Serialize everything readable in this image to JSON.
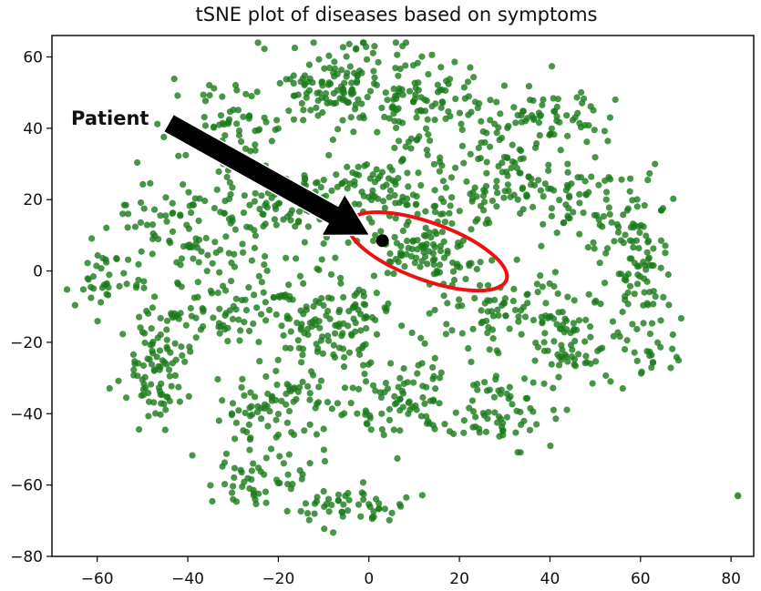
{
  "chart_data": {
    "type": "scatter",
    "title": "tSNE plot of diseases based on symptoms",
    "xlabel": "",
    "ylabel": "",
    "xlim": [
      -70,
      85
    ],
    "ylim": [
      -80,
      66
    ],
    "x_ticks": [
      -60,
      -40,
      -20,
      0,
      20,
      40,
      60,
      80
    ],
    "y_ticks": [
      -80,
      -60,
      -40,
      -20,
      0,
      20,
      40,
      60
    ],
    "grid": false,
    "point_color": "#1a7a1a",
    "clusters": [
      {
        "cx": -8,
        "cy": 52,
        "sx": 8,
        "sy": 6,
        "n": 120
      },
      {
        "cx": 12,
        "cy": 48,
        "sx": 7,
        "sy": 7,
        "n": 100
      },
      {
        "cx": 38,
        "cy": 42,
        "sx": 9,
        "sy": 5,
        "n": 90
      },
      {
        "cx": -30,
        "cy": 38,
        "sx": 7,
        "sy": 7,
        "n": 80
      },
      {
        "cx": -42,
        "cy": 12,
        "sx": 7,
        "sy": 8,
        "n": 70
      },
      {
        "cx": -20,
        "cy": 18,
        "sx": 8,
        "sy": 6,
        "n": 90
      },
      {
        "cx": 5,
        "cy": 22,
        "sx": 9,
        "sy": 6,
        "n": 110
      },
      {
        "cx": 28,
        "cy": 24,
        "sx": 8,
        "sy": 5,
        "n": 80
      },
      {
        "cx": 48,
        "cy": 18,
        "sx": 6,
        "sy": 7,
        "n": 60
      },
      {
        "cx": 60,
        "cy": 4,
        "sx": 4,
        "sy": 9,
        "n": 80
      },
      {
        "cx": 12,
        "cy": 5,
        "sx": 6,
        "sy": 4,
        "n": 80
      },
      {
        "cx": -58,
        "cy": -3,
        "sx": 5,
        "sy": 4,
        "n": 40
      },
      {
        "cx": -30,
        "cy": -8,
        "sx": 7,
        "sy": 7,
        "n": 90
      },
      {
        "cx": -8,
        "cy": -15,
        "sx": 6,
        "sy": 8,
        "n": 130
      },
      {
        "cx": 30,
        "cy": -10,
        "sx": 8,
        "sy": 6,
        "n": 90
      },
      {
        "cx": 45,
        "cy": -20,
        "sx": 6,
        "sy": 6,
        "n": 60
      },
      {
        "cx": -47,
        "cy": -28,
        "sx": 4,
        "sy": 8,
        "n": 90
      },
      {
        "cx": -20,
        "cy": -38,
        "sx": 7,
        "sy": 6,
        "n": 80
      },
      {
        "cx": 10,
        "cy": -35,
        "sx": 7,
        "sy": 6,
        "n": 90
      },
      {
        "cx": 30,
        "cy": -40,
        "sx": 6,
        "sy": 5,
        "n": 60
      },
      {
        "cx": -25,
        "cy": -58,
        "sx": 6,
        "sy": 4,
        "n": 50
      },
      {
        "cx": -2,
        "cy": -66,
        "sx": 6,
        "sy": 3,
        "n": 50
      },
      {
        "cx": 62,
        "cy": -20,
        "sx": 4,
        "sy": 5,
        "n": 30
      }
    ],
    "seed": 7,
    "outlier_points": [
      {
        "x": 81.5,
        "y": -63
      }
    ],
    "patient_point": {
      "x": 3,
      "y": 8.5,
      "color": "#000000"
    },
    "highlight_ellipse": {
      "cx": 13,
      "cy": 5.5,
      "rx": 18.5,
      "ry": 8,
      "rotation_deg": 20,
      "color": "#ee1111"
    },
    "annotation": {
      "text": "Patient",
      "arrow_color": "#000000"
    }
  }
}
